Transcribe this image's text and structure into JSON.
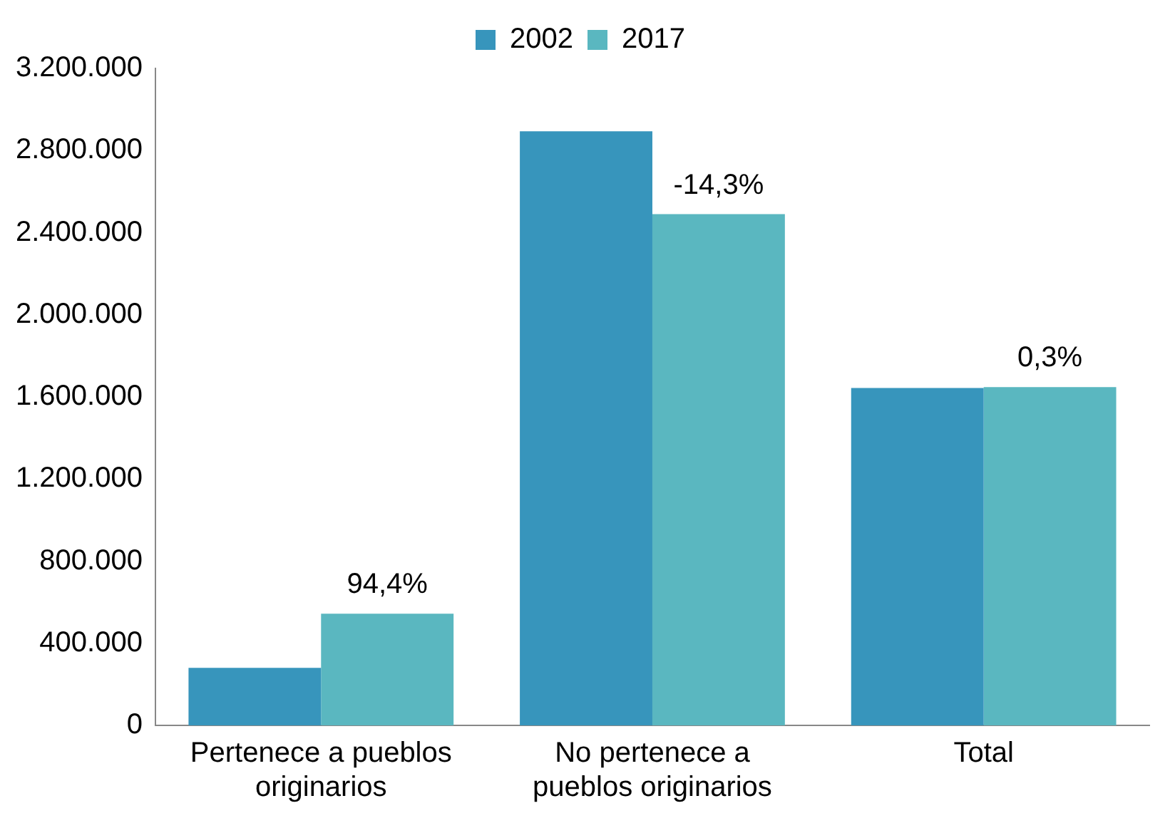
{
  "chart_data": {
    "type": "bar",
    "categories": [
      "Pertenece a pueblos originarios",
      "No pertenece a pueblos originarios",
      "Total"
    ],
    "series": [
      {
        "name": "2002",
        "color": "#3795bc",
        "values": [
          280000,
          2894000,
          1643000
        ]
      },
      {
        "name": "2017",
        "color": "#5ab7c0",
        "values": [
          544000,
          2490000,
          1648000
        ]
      }
    ],
    "annotations": [
      {
        "text": "94,4%",
        "x": "Pertenece a pueblos originarios",
        "y": 544000
      },
      {
        "text": "-14,3%",
        "x": "No pertenece a pueblos originarios",
        "y": 2490000
      },
      {
        "text": "0,3%",
        "x": "Total",
        "y": 1648000
      }
    ],
    "ylim": [
      0,
      3200000
    ],
    "yticks": [
      {
        "value": 0,
        "label": "0"
      },
      {
        "value": 400000,
        "label": "400.000"
      },
      {
        "value": 800000,
        "label": "800.000"
      },
      {
        "value": 1200000,
        "label": "1.200.000"
      },
      {
        "value": 1600000,
        "label": "1.600.000"
      },
      {
        "value": 2000000,
        "label": "2.000.000"
      },
      {
        "value": 2400000,
        "label": "2.400.000"
      },
      {
        "value": 2800000,
        "label": "2.800.000"
      },
      {
        "value": 3200000,
        "label": "3.200.000"
      }
    ],
    "grid": false,
    "legend": "top"
  }
}
